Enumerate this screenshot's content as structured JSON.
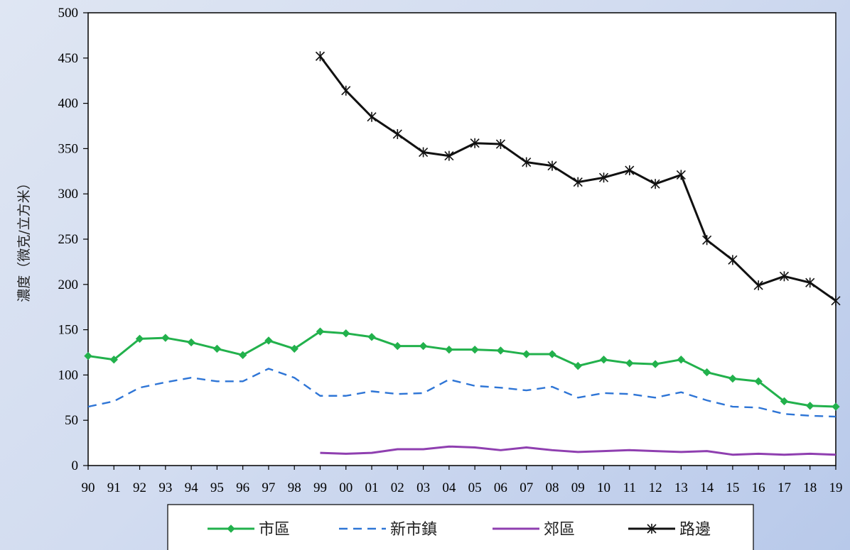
{
  "chart_data": {
    "type": "line",
    "title": "",
    "xlabel": "",
    "ylabel": "濃度（微克/立方米）",
    "ylim": [
      0,
      500
    ],
    "yticks": [
      0,
      50,
      100,
      150,
      200,
      250,
      300,
      350,
      400,
      450,
      500
    ],
    "categories": [
      "90",
      "91",
      "92",
      "93",
      "94",
      "95",
      "96",
      "97",
      "98",
      "99",
      "00",
      "01",
      "02",
      "03",
      "04",
      "05",
      "06",
      "07",
      "08",
      "09",
      "10",
      "11",
      "12",
      "13",
      "14",
      "15",
      "16",
      "17",
      "18",
      "19"
    ],
    "grid": false,
    "legend_position": "bottom",
    "series": [
      {
        "name": "市區",
        "color": "#22b14c",
        "line_style": "solid",
        "marker": "diamond",
        "values": [
          121,
          117,
          140,
          141,
          136,
          129,
          122,
          138,
          129,
          148,
          146,
          142,
          132,
          132,
          128,
          128,
          127,
          123,
          123,
          110,
          117,
          113,
          112,
          117,
          103,
          96,
          93,
          71,
          66,
          65
        ]
      },
      {
        "name": "新市鎮",
        "color": "#2e75d6",
        "line_style": "dashed",
        "marker": "none",
        "values": [
          65,
          71,
          86,
          92,
          97,
          93,
          93,
          107,
          97,
          77,
          77,
          82,
          79,
          80,
          95,
          88,
          86,
          83,
          87,
          75,
          80,
          79,
          75,
          81,
          72,
          65,
          64,
          57,
          55,
          54
        ]
      },
      {
        "name": "郊區",
        "color": "#8f3fb0",
        "line_style": "solid",
        "marker": "none",
        "values": [
          null,
          null,
          null,
          null,
          null,
          null,
          null,
          null,
          null,
          14,
          13,
          14,
          18,
          18,
          21,
          20,
          17,
          20,
          17,
          15,
          16,
          17,
          16,
          15,
          16,
          12,
          13,
          12,
          13,
          12
        ]
      },
      {
        "name": "路邊",
        "color": "#111111",
        "line_style": "solid",
        "marker": "star",
        "values": [
          null,
          null,
          null,
          null,
          null,
          null,
          null,
          null,
          null,
          452,
          414,
          385,
          366,
          346,
          342,
          356,
          355,
          335,
          331,
          313,
          318,
          326,
          311,
          321,
          249,
          227,
          199,
          209,
          202,
          182
        ]
      }
    ]
  }
}
